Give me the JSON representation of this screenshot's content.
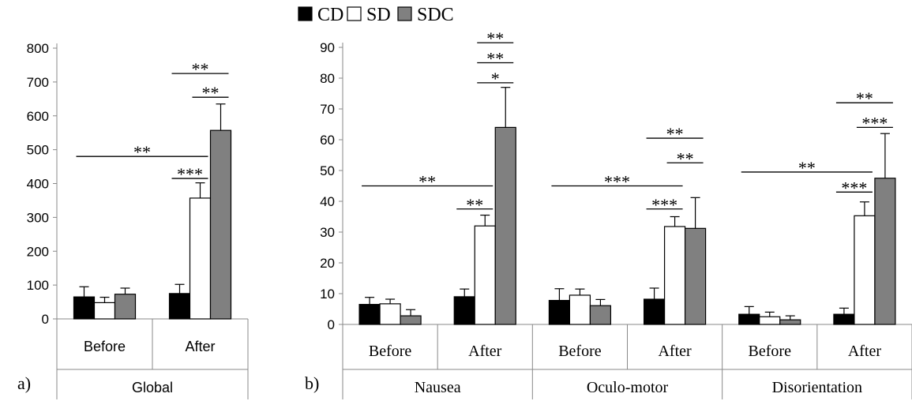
{
  "legend": [
    {
      "label": "CD",
      "color": "#000000"
    },
    {
      "label": "SD",
      "color": "#ffffff"
    },
    {
      "label": "SDC",
      "color": "#808080"
    }
  ],
  "chart_data": [
    {
      "type": "bar",
      "panel_label": "a)",
      "groups": [
        "Global"
      ],
      "categories": [
        "Before",
        "After"
      ],
      "ylim": [
        0,
        800
      ],
      "yticks": [
        0,
        100,
        200,
        300,
        400,
        500,
        600,
        700,
        800
      ],
      "series": [
        {
          "name": "CD",
          "values": [
            65,
            75
          ],
          "errors": [
            30,
            27
          ]
        },
        {
          "name": "SD",
          "values": [
            48,
            357
          ],
          "errors": [
            16,
            45
          ]
        },
        {
          "name": "SDC",
          "values": [
            73,
            557
          ],
          "errors": [
            18,
            78
          ]
        }
      ],
      "significance": [
        {
          "label": "**",
          "from_series": "CD",
          "from_bar": 1,
          "to_series": "SDC",
          "to_bar": 1,
          "y": 725
        },
        {
          "label": "**",
          "from_series": "SD",
          "from_bar": 1,
          "to_series": "SDC",
          "to_bar": 1,
          "y": 655
        },
        {
          "label": "**",
          "from_series": "CD",
          "from_bar": 0,
          "to_series": "SD",
          "to_bar": 1,
          "y": 480
        },
        {
          "label": "***",
          "from_series": "CD",
          "from_bar": 1,
          "to_series": "SD",
          "to_bar": 1,
          "y": 415
        }
      ]
    },
    {
      "type": "bar",
      "panel_label": "b)",
      "groups": [
        "Nausea",
        "Oculo-motor",
        "Disorientation"
      ],
      "categories": [
        "Before",
        "After",
        "Before",
        "After",
        "Before",
        "After"
      ],
      "ylim": [
        0,
        90
      ],
      "yticks": [
        0,
        10,
        20,
        30,
        40,
        50,
        60,
        70,
        80,
        90
      ],
      "series": [
        {
          "name": "CD",
          "values": [
            6.5,
            9.0,
            7.8,
            8.2,
            3.3,
            3.3
          ],
          "errors": [
            2.3,
            2.5,
            3.8,
            3.6,
            2.5,
            2.0
          ]
        },
        {
          "name": "SD",
          "values": [
            6.7,
            32.0,
            9.5,
            31.8,
            2.5,
            35.3
          ],
          "errors": [
            1.5,
            3.5,
            2.0,
            3.2,
            1.5,
            4.5
          ]
        },
        {
          "name": "SDC",
          "values": [
            2.8,
            64.0,
            6.1,
            31.2,
            1.5,
            47.5
          ],
          "errors": [
            2.0,
            13.0,
            2.0,
            10.0,
            1.3,
            14.5
          ]
        }
      ],
      "significance": [
        {
          "label": "**",
          "from_series": "SD",
          "from_bar": 1,
          "to_series": "SDC",
          "to_bar": 1,
          "y": 91.5
        },
        {
          "label": "**",
          "from_series": "SD",
          "from_bar": 1,
          "to_series": "SDC",
          "to_bar": 1,
          "y": 85
        },
        {
          "label": "*",
          "from_series": "SD",
          "from_bar": 1,
          "to_series": "SDC",
          "to_bar": 1,
          "y": 78.5
        },
        {
          "label": "**",
          "from_series": "CD",
          "from_bar": 0,
          "to_series": "SD",
          "to_bar": 1,
          "y": 45
        },
        {
          "label": "**",
          "from_series": "CD",
          "from_bar": 1,
          "to_series": "SD",
          "to_bar": 1,
          "y": 37.5
        },
        {
          "label": "**",
          "from_series": "CD",
          "from_bar": 3,
          "to_series": "SDC",
          "to_bar": 3,
          "y": 60.5
        },
        {
          "label": "**",
          "from_series": "SD",
          "from_bar": 3,
          "to_series": "SDC",
          "to_bar": 3,
          "y": 52.5
        },
        {
          "label": "***",
          "from_series": "CD",
          "from_bar": 2,
          "to_series": "SD",
          "to_bar": 3,
          "y": 45
        },
        {
          "label": "***",
          "from_series": "CD",
          "from_bar": 3,
          "to_series": "SD",
          "to_bar": 3,
          "y": 37.5
        },
        {
          "label": "**",
          "from_series": "CD",
          "from_bar": 5,
          "to_series": "SDC",
          "to_bar": 5,
          "y": 72
        },
        {
          "label": "***",
          "from_series": "SD",
          "from_bar": 5,
          "to_series": "SDC",
          "to_bar": 5,
          "y": 64
        },
        {
          "label": "**",
          "from_series": "CD",
          "from_bar": 4,
          "to_series": "SD",
          "to_bar": 5,
          "y": 49.5
        },
        {
          "label": "***",
          "from_series": "CD",
          "from_bar": 5,
          "to_series": "SD",
          "to_bar": 5,
          "y": 43
        }
      ]
    }
  ]
}
